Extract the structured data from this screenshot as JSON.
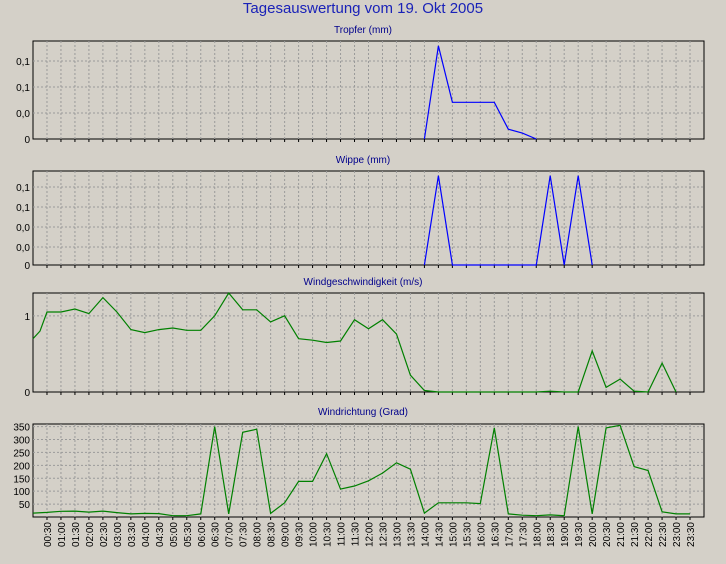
{
  "title": "Tagesauswertung vom 19. Okt 2005",
  "colors": {
    "background": "#d4d0c8",
    "plot_bg": "#d4d0c8",
    "grid": "#9a9a9a",
    "blue_series": "#0000ff",
    "green_series": "#008000",
    "title": "#1a22b8"
  },
  "chart_data": [
    {
      "type": "line",
      "title": "Tropfer (mm)",
      "ylabel": "",
      "ytick_labels": [
        "0,1",
        "0,1",
        "0,0",
        "0"
      ],
      "ylim": [
        0,
        0.2
      ],
      "grid": true,
      "series": [
        {
          "color": "#0000ff",
          "x": [
            14.0,
            14.5,
            15.0,
            15.5,
            16.0,
            16.5,
            17.0,
            17.5,
            18.0
          ],
          "y": [
            0.0,
            0.19,
            0.075,
            0.075,
            0.075,
            0.075,
            0.02,
            0.012,
            0.0
          ]
        }
      ]
    },
    {
      "type": "line",
      "title": "Wippe (mm)",
      "ylabel": "",
      "ytick_labels": [
        "0,1",
        "0,1",
        "0,0",
        "0,0",
        "0"
      ],
      "ylim": [
        0,
        0.2
      ],
      "grid": true,
      "series": [
        {
          "color": "#0000ff",
          "x": [
            14.0,
            14.5,
            15.0,
            18.0,
            18.5,
            19.0,
            19.5,
            20.0
          ],
          "y": [
            0.0,
            0.19,
            0.0,
            0.0,
            0.19,
            0.0,
            0.19,
            0.0
          ]
        }
      ]
    },
    {
      "type": "line",
      "title": "Windgeschwindigkeit (m/s)",
      "ylabel": "",
      "ytick_labels": [
        "1",
        "0"
      ],
      "ylim": [
        0,
        1.3
      ],
      "grid": true,
      "series": [
        {
          "color": "#008000",
          "x": [
            0,
            0.25,
            0.5,
            1.0,
            1.5,
            2.0,
            2.5,
            3.0,
            3.5,
            4.0,
            4.5,
            5.0,
            5.5,
            6.0,
            6.5,
            7.0,
            7.5,
            8.0,
            8.5,
            9.0,
            9.5,
            10.0,
            10.5,
            11.0,
            11.5,
            12.0,
            12.5,
            13.0,
            13.5,
            14.0,
            14.5,
            15.0,
            18.0,
            18.5,
            19.0,
            19.5,
            20.0,
            20.5,
            21.0,
            21.5,
            22.0,
            22.5,
            23.0
          ],
          "y": [
            0.7,
            0.8,
            1.05,
            1.05,
            1.09,
            1.03,
            1.24,
            1.05,
            0.82,
            0.78,
            0.82,
            0.84,
            0.81,
            0.81,
            1.0,
            1.3,
            1.08,
            1.08,
            0.92,
            1.0,
            0.7,
            0.68,
            0.65,
            0.67,
            0.95,
            0.83,
            0.95,
            0.76,
            0.22,
            0.02,
            0.0,
            0.0,
            0.0,
            0.01,
            0.0,
            0.0,
            0.54,
            0.06,
            0.17,
            0.01,
            0.0,
            0.38,
            0.0
          ]
        }
      ]
    },
    {
      "type": "line",
      "title": "Windrichtung (Grad)",
      "ylabel": "",
      "yticks": [
        50,
        100,
        150,
        200,
        250,
        300,
        350
      ],
      "ylim": [
        0,
        360
      ],
      "grid": true,
      "xtick_labels": [
        "00:30",
        "01:00",
        "01:30",
        "02:00",
        "02:30",
        "03:00",
        "03:30",
        "04:00",
        "04:30",
        "05:00",
        "05:30",
        "06:00",
        "06:30",
        "07:00",
        "07:30",
        "08:00",
        "08:30",
        "09:00",
        "09:30",
        "10:00",
        "10:30",
        "11:00",
        "11:30",
        "12:00",
        "12:30",
        "13:00",
        "13:30",
        "14:00",
        "14:30",
        "15:00",
        "15:30",
        "16:00",
        "16:30",
        "17:00",
        "17:30",
        "18:00",
        "18:30",
        "19:00",
        "19:30",
        "20:00",
        "20:30",
        "21:00",
        "21:30",
        "22:00",
        "22:30",
        "23:00",
        "23:30"
      ],
      "series": [
        {
          "color": "#008000",
          "x": [
            0,
            0.5,
            1.0,
            1.5,
            2.0,
            2.5,
            3.0,
            3.5,
            4.0,
            4.5,
            5.0,
            5.5,
            6.0,
            6.5,
            7.0,
            7.5,
            8.0,
            8.5,
            9.0,
            9.5,
            10.0,
            10.5,
            11.0,
            11.5,
            12.0,
            12.5,
            13.0,
            13.5,
            14.0,
            14.5,
            15.0,
            15.5,
            16.0,
            16.5,
            17.0,
            17.5,
            18.0,
            18.5,
            19.0,
            19.5,
            20.0,
            20.5,
            21.0,
            21.5,
            22.0,
            22.5,
            23.0,
            23.5
          ],
          "y": [
            15,
            18,
            22,
            23,
            19,
            23,
            17,
            12,
            14,
            13,
            5,
            5,
            12,
            350,
            12,
            328,
            340,
            14,
            55,
            138,
            138,
            245,
            108,
            120,
            140,
            170,
            210,
            185,
            15,
            55,
            55,
            55,
            52,
            345,
            12,
            7,
            5,
            8,
            5,
            350,
            12,
            345,
            355,
            195,
            180,
            20,
            12,
            12
          ]
        }
      ]
    }
  ]
}
